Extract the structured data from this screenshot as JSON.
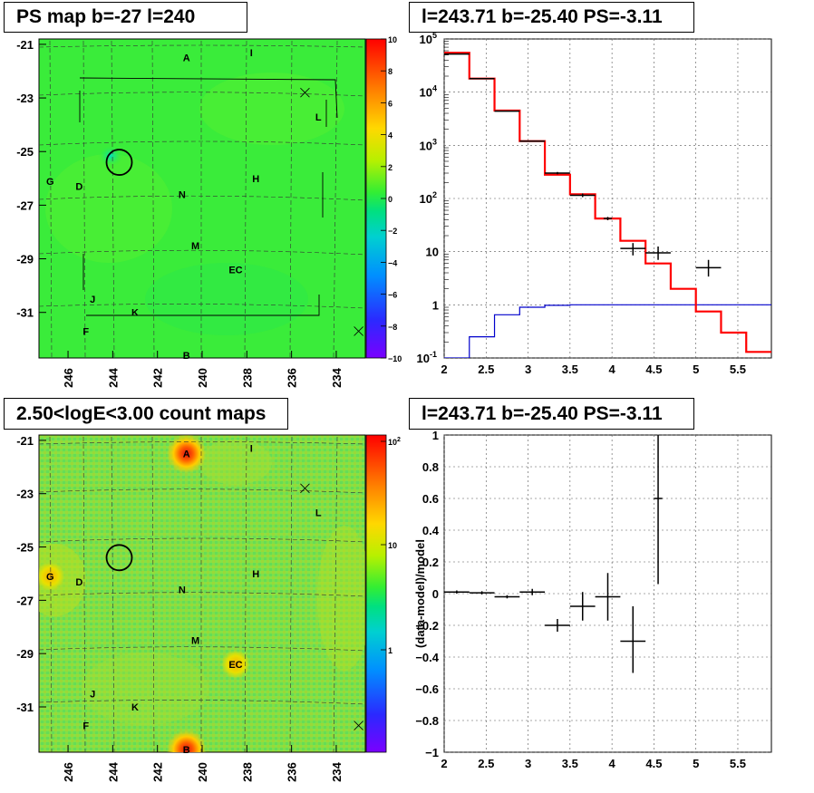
{
  "panels": {
    "ps_map_title": "PS map b=-27 l=240",
    "spectrum_title": "l=243.71 b=-25.40 PS=-3.11",
    "count_map_title": "2.50<logE<3.00 count maps",
    "residual_title": "l=243.71 b=-25.40 PS=-3.11"
  },
  "colors": {
    "data": "#000000",
    "model": "#ff0000",
    "background_model": "#0000cc",
    "map_green": "#33ee33",
    "hot_red": "#e01010"
  },
  "chart_data": [
    {
      "type": "heatmap",
      "title": "PS map b=-27 l=240",
      "x_ticks": [
        "246",
        "244",
        "242",
        "240",
        "238",
        "236",
        "234"
      ],
      "y_ticks": [
        "-21",
        "-23",
        "-25",
        "-27",
        "-29",
        "-31"
      ],
      "xlim": [
        247.3,
        232.7
      ],
      "ylim": [
        -32.7,
        -20.8
      ],
      "colorbar": {
        "range": [
          -10,
          10
        ],
        "ticks": [
          "10",
          "8",
          "6",
          "4",
          "2",
          "0",
          "−2",
          "−4",
          "−6",
          "−8",
          "−10"
        ]
      },
      "sources": [
        {
          "label": "A",
          "l": 240.7,
          "b": -21.5
        },
        {
          "label": "I",
          "l": 237.8,
          "b": -21.3
        },
        {
          "label": "L",
          "l": 234.8,
          "b": -23.7
        },
        {
          "label": "G",
          "l": 246.8,
          "b": -26.1
        },
        {
          "label": "D",
          "l": 245.5,
          "b": -26.3
        },
        {
          "label": "N",
          "l": 240.9,
          "b": -26.6
        },
        {
          "label": "H",
          "l": 237.6,
          "b": -26.0
        },
        {
          "label": "M",
          "l": 240.3,
          "b": -28.5
        },
        {
          "label": "EC",
          "l": 238.5,
          "b": -29.4
        },
        {
          "label": "J",
          "l": 244.9,
          "b": -30.5
        },
        {
          "label": "K",
          "l": 243.0,
          "b": -31.0
        },
        {
          "label": "F",
          "l": 245.2,
          "b": -31.7
        },
        {
          "label": "B",
          "l": 240.7,
          "b": -32.6
        }
      ],
      "circle": {
        "l": 243.71,
        "b": -25.4
      },
      "x_markers": [
        {
          "l": 235.4,
          "b": -22.8
        },
        {
          "l": 233.0,
          "b": -31.7
        }
      ]
    },
    {
      "type": "line",
      "title": "l=243.71 b=-25.40 PS=-3.11",
      "xlim": [
        2,
        5.9
      ],
      "ylim": [
        0.1,
        100000
      ],
      "yscale": "log",
      "x_ticks": [
        "2",
        "2.5",
        "3",
        "3.5",
        "4",
        "4.5",
        "5",
        "5.5"
      ],
      "y_ticks": [
        "10^-1",
        "1",
        "10",
        "10^2",
        "10^3",
        "10^4",
        "10^5"
      ],
      "grid": true,
      "bin_edges": [
        2.0,
        2.3,
        2.6,
        2.9,
        3.2,
        3.5,
        3.8,
        4.1,
        4.4,
        4.7,
        5.0,
        5.3,
        5.6,
        5.9
      ],
      "series": [
        {
          "values": [
            55000,
            18000,
            4500,
            1200,
            280,
            120,
            42,
            16,
            6,
            2,
            0.75,
            0.3,
            0.13
          ]
        },
        {
          "values": [
            0.1,
            0.25,
            0.65,
            0.9,
            0.98,
            1.0,
            1.0,
            1.0,
            1.0,
            1.0,
            1.0,
            1.0,
            1.0
          ]
        },
        {
          "x": [
            2.15,
            2.45,
            2.75,
            3.05,
            3.35,
            3.65,
            3.95,
            4.25,
            4.55,
            5.15
          ],
          "y": [
            52000,
            18000,
            4400,
            1200,
            300,
            115,
            42,
            11.5,
            9.5,
            5
          ],
          "xerr": [
            0.15,
            0.15,
            0.15,
            0.15,
            0.15,
            0.15,
            0.05,
            0.15,
            0.15,
            0.15
          ],
          "ylo": [
            51500,
            17850,
            4340,
            1170,
            285,
            106,
            39,
            8.5,
            7,
            3.4
          ],
          "yhi": [
            52500,
            18150,
            4460,
            1230,
            315,
            124,
            45,
            14.5,
            12.5,
            7
          ]
        }
      ]
    },
    {
      "type": "heatmap",
      "title": "2.50<logE<3.00 count maps",
      "x_ticks": [
        "246",
        "244",
        "242",
        "240",
        "238",
        "236",
        "234"
      ],
      "y_ticks": [
        "-21",
        "-23",
        "-25",
        "-27",
        "-29",
        "-31"
      ],
      "xlim": [
        247.3,
        232.7
      ],
      "ylim": [
        -32.7,
        -20.8
      ],
      "colorbar": {
        "scale": "log",
        "ticks": [
          "10^2",
          "10",
          "1"
        ]
      },
      "hotspots": [
        {
          "label": "A",
          "l": 240.7,
          "b": -21.5
        },
        {
          "label": "B",
          "l": 240.7,
          "b": -32.6
        },
        {
          "label": "EC",
          "l": 238.5,
          "b": -29.4
        },
        {
          "label": "G",
          "l": 246.8,
          "b": -26.1
        }
      ],
      "circle": {
        "l": 243.71,
        "b": -25.4
      }
    },
    {
      "type": "scatter",
      "title": "l=243.71 b=-25.40 PS=-3.11",
      "ylabel": "(data-model)/model",
      "xlim": [
        2,
        5.9
      ],
      "ylim": [
        -1,
        1
      ],
      "x_ticks": [
        "2",
        "2.5",
        "3",
        "3.5",
        "4",
        "4.5",
        "5",
        "5.5"
      ],
      "y_ticks": [
        "1",
        "0.8",
        "0.6",
        "0.4",
        "0.2",
        "0",
        "−0.2",
        "−0.4",
        "−0.6",
        "−0.8",
        "−1"
      ],
      "grid": true,
      "points": {
        "x": [
          2.15,
          2.45,
          2.75,
          3.05,
          3.35,
          3.65,
          3.95,
          4.25,
          4.55
        ],
        "y": [
          0.01,
          0.005,
          -0.02,
          0.01,
          -0.2,
          -0.08,
          -0.02,
          -0.3,
          0.6
        ],
        "xerr": [
          0.15,
          0.15,
          0.15,
          0.15,
          0.15,
          0.15,
          0.15,
          0.15,
          0.05
        ],
        "ylo": [
          0.0,
          -0.005,
          -0.03,
          -0.01,
          -0.24,
          -0.17,
          -0.17,
          -0.5,
          0.06
        ],
        "yhi": [
          0.02,
          0.015,
          -0.01,
          0.03,
          -0.16,
          0.01,
          0.13,
          -0.08,
          1.0
        ]
      }
    }
  ]
}
